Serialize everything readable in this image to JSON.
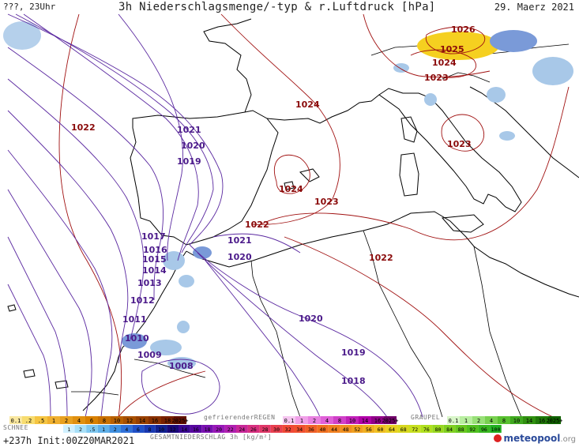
{
  "header": {
    "left": "???, 23Uhr",
    "title": "3h Niederschlagsmenge/-typ & r.Luftdruck [hPa]",
    "date": "29. Maerz 2021"
  },
  "footer": {
    "run": "+237h  Init:00Z20MAR2021",
    "logo_text": "meteopool",
    "logo_suffix": ".org"
  },
  "legends": {
    "snow": {
      "title": "SCHNEE",
      "ticks": [
        "0.1",
        ".2",
        ".5",
        "1",
        "2",
        "4",
        "6",
        "8",
        "10",
        "12",
        "14",
        "16",
        "18",
        "2025+"
      ],
      "colors": [
        "#f9e79f",
        "#f7dc6f",
        "#f5c542",
        "#f0b030",
        "#e8a020",
        "#e09010",
        "#d88000",
        "#c87000",
        "#b86000",
        "#a85000",
        "#984000",
        "#883000",
        "#782000",
        "#601000"
      ]
    },
    "freezing_rain": {
      "title": "gefrierenderREGEN",
      "ticks": [
        "0.1",
        "1",
        "2",
        "4",
        "8",
        "10",
        "14",
        "16",
        "2025+"
      ],
      "colors": [
        "#f6c6f0",
        "#f0a0e8",
        "#e880e0",
        "#e060d8",
        "#d040c8",
        "#c020b8",
        "#b000a8",
        "#900088",
        "#700068"
      ]
    },
    "graupel": {
      "title": "GRAUPEL",
      "ticks": [
        "0.1",
        "1",
        "2",
        "4",
        "8",
        "10",
        "14",
        "16",
        "2025+"
      ],
      "colors": [
        "#d8f5c8",
        "#b8eea0",
        "#98e078",
        "#78d050",
        "#58c030",
        "#40a820",
        "#309010",
        "#207808",
        "#106000"
      ]
    },
    "total": {
      "title": "GESAMTNIEDERSCHLAG 3h [kg/m²]",
      "ticks": [
        "1",
        "2",
        ".5",
        "1",
        "2",
        "4",
        "6",
        "8",
        "10",
        "12",
        "14",
        "16",
        "18",
        "20",
        "22",
        "24",
        "26",
        "28",
        "30",
        "32",
        "34",
        "36",
        "40",
        "44",
        "48",
        "52",
        "56",
        "60",
        "64",
        "68",
        "72",
        "76",
        "80",
        "84",
        "88",
        "92",
        "96",
        "100"
      ],
      "colors": [
        "#d0f0ff",
        "#a8e0f8",
        "#80c8f0",
        "#60b0e8",
        "#4090e0",
        "#3070d8",
        "#2050c8",
        "#1838b0",
        "#102090",
        "#180878",
        "#380890",
        "#5808a0",
        "#7810b0",
        "#9818b8",
        "#b020b0",
        "#c82898",
        "#d83080",
        "#e03868",
        "#e84050",
        "#f04838",
        "#f05030",
        "#f06028",
        "#f07020",
        "#f08020",
        "#f09020",
        "#f0a020",
        "#f0b020",
        "#f0c020",
        "#e8d020",
        "#d8d820",
        "#c8e020",
        "#b0e020",
        "#98d820",
        "#80d020",
        "#68c820",
        "#50c020",
        "#38b820",
        "#20b020"
      ]
    }
  },
  "isobars_red": [
    {
      "label": "1026"
    },
    {
      "label": "1025"
    },
    {
      "label": "1024"
    },
    {
      "label": "1023"
    },
    {
      "label": "1024"
    },
    {
      "label": "1023"
    },
    {
      "label": "1022"
    },
    {
      "label": "1024"
    },
    {
      "label": "1023"
    },
    {
      "label": "1022"
    },
    {
      "label": "1022"
    }
  ],
  "isobars_purple": [
    {
      "label": "1021"
    },
    {
      "label": "1020"
    },
    {
      "label": "1019"
    },
    {
      "label": "1017"
    },
    {
      "label": "1016"
    },
    {
      "label": "1015"
    },
    {
      "label": "1014"
    },
    {
      "label": "1013"
    },
    {
      "label": "1012"
    },
    {
      "label": "1011"
    },
    {
      "label": "1010"
    },
    {
      "label": "1009"
    },
    {
      "label": "1008"
    },
    {
      "label": "1021"
    },
    {
      "label": "1020"
    },
    {
      "label": "1020"
    },
    {
      "label": "1019"
    },
    {
      "label": "1018"
    }
  ],
  "colors": {
    "isobar_red": "#a01010",
    "isobar_purple": "#5a28a0",
    "coast": "#000000",
    "rain_light": "#a8c8e8",
    "rain_mid": "#7a9ad8",
    "snow": "#f5d020",
    "logo_red": "#d22222"
  }
}
